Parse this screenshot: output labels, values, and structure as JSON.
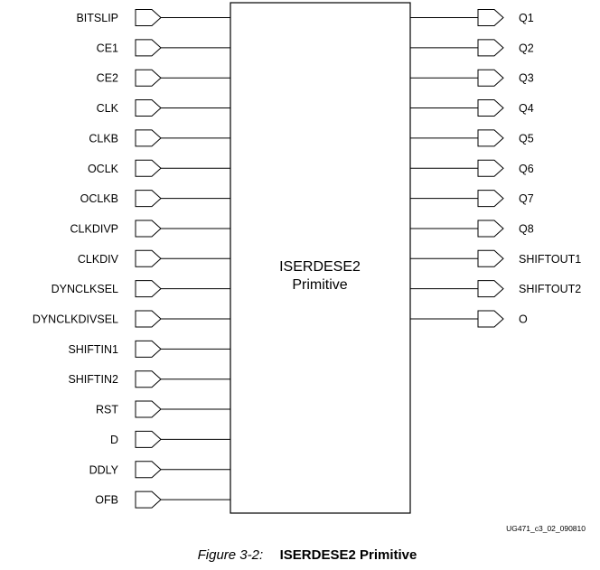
{
  "block": {
    "name": "ISERDESE2",
    "subtitle": "Primitive"
  },
  "inputs": [
    "BITSLIP",
    "CE1",
    "CE2",
    "CLK",
    "CLKB",
    "OCLK",
    "OCLKB",
    "CLKDIVP",
    "CLKDIV",
    "DYNCLKSEL",
    "DYNCLKDIVSEL",
    "SHIFTIN1",
    "SHIFTIN2",
    "RST",
    "D",
    "DDLY",
    "OFB"
  ],
  "outputs": [
    "Q1",
    "Q2",
    "Q3",
    "Q4",
    "Q5",
    "Q6",
    "Q7",
    "Q8",
    "SHIFTOUT1",
    "SHIFTOUT2",
    "O"
  ],
  "doc_id": "UG471_c3_02_090810",
  "caption": {
    "prefix": "Figure 3-2:",
    "title": "ISERDESE2 Primitive"
  }
}
